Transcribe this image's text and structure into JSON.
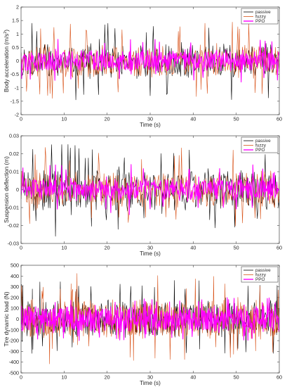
{
  "series_colors": {
    "passive": "#000000",
    "fuzzy": "#d95319",
    "PPO": "#ff00ff"
  },
  "chart_data": [
    {
      "type": "line",
      "title": "",
      "xlabel": "Time (s)",
      "ylabel": "Body acceleration (m/s",
      "ylabel_sup": "2",
      "ylabel_tail": ")",
      "xlim": [
        0,
        60
      ],
      "ylim": [
        -2,
        2
      ],
      "xticks": [
        0,
        10,
        20,
        30,
        40,
        50,
        60
      ],
      "yticks": [
        -2,
        -1.5,
        -1,
        -0.5,
        0,
        0.5,
        1,
        1.5,
        2
      ],
      "ytick_labels": [
        "-2",
        "-1.5",
        "-1",
        "-0.5",
        "0",
        "0.5",
        "1",
        "1.5",
        "2"
      ],
      "legend_position": "top-right",
      "legend": [
        "passive",
        "fuzzy",
        "PPO"
      ],
      "series": [
        {
          "name": "passive",
          "amplitude": 0.48,
          "peak_range": [
            -1.45,
            1.4
          ],
          "samples": 330,
          "seed": 11,
          "style": "solid"
        },
        {
          "name": "fuzzy",
          "amplitude": 0.45,
          "peak_range": [
            -1.3,
            1.45
          ],
          "samples": 330,
          "seed": 23,
          "style": "solid"
        },
        {
          "name": "PPO",
          "amplitude": 0.3,
          "peak_range": [
            -0.8,
            0.8
          ],
          "samples": 420,
          "seed": 37,
          "style": "solid"
        }
      ]
    },
    {
      "type": "line",
      "title": "",
      "xlabel": "Time (s)",
      "ylabel": "Suspension deflection (m)",
      "xlim": [
        0,
        60
      ],
      "ylim": [
        -0.03,
        0.03
      ],
      "xticks": [
        0,
        10,
        20,
        30,
        40,
        50,
        60
      ],
      "yticks": [
        -0.03,
        -0.02,
        -0.01,
        0,
        0.01,
        0.02,
        0.03
      ],
      "ytick_labels": [
        "-0.03",
        "-0.02",
        "-0.01",
        "0",
        "0.01",
        "0.02",
        "0.03"
      ],
      "legend_position": "top-right",
      "legend": [
        "passive",
        "fuzzy",
        "PPO"
      ],
      "series": [
        {
          "name": "passive",
          "amplitude": 0.0085,
          "peak_range": [
            -0.021,
            0.026
          ],
          "samples": 330,
          "seed": 51,
          "style": "solid"
        },
        {
          "name": "fuzzy",
          "amplitude": 0.0075,
          "peak_range": [
            -0.02,
            0.024
          ],
          "samples": 330,
          "seed": 63,
          "style": "solid"
        },
        {
          "name": "PPO",
          "amplitude": 0.0045,
          "peak_range": [
            -0.011,
            0.014
          ],
          "samples": 420,
          "seed": 77,
          "style": "solid"
        }
      ]
    },
    {
      "type": "line",
      "title": "",
      "xlabel": "Time (s)",
      "ylabel": "Tire dynamic load (N)",
      "xlim": [
        0,
        60
      ],
      "ylim": [
        -500,
        500
      ],
      "xticks": [
        0,
        10,
        20,
        30,
        40,
        50,
        60
      ],
      "yticks": [
        -500,
        -400,
        -300,
        -200,
        -100,
        0,
        100,
        200,
        300,
        400,
        500
      ],
      "ytick_labels": [
        "-500",
        "-400",
        "-300",
        "-200",
        "-100",
        "0",
        "100",
        "200",
        "300",
        "400",
        "500"
      ],
      "legend_position": "top-right",
      "legend": [
        "passive",
        "fuzzy",
        "PPO"
      ],
      "series": [
        {
          "name": "passive",
          "amplitude": 125,
          "peak_range": [
            -330,
            360
          ],
          "samples": 480,
          "seed": 91,
          "style": "solid"
        },
        {
          "name": "fuzzy",
          "amplitude": 135,
          "peak_range": [
            -430,
            330
          ],
          "samples": 480,
          "seed": 103,
          "style": "solid"
        },
        {
          "name": "PPO",
          "amplitude": 90,
          "peak_range": [
            -200,
            200
          ],
          "samples": 560,
          "seed": 117,
          "style": "solid"
        }
      ]
    }
  ]
}
